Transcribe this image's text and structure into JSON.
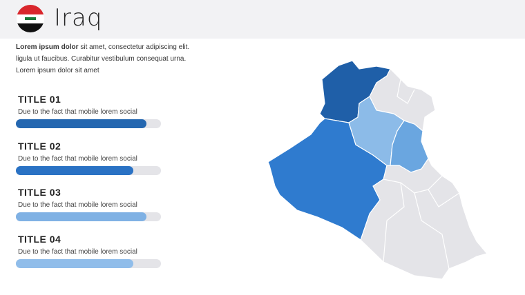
{
  "header": {
    "title": "Iraq"
  },
  "intro": {
    "bold": "Lorem ipsum dolor",
    "lines": [
      " sit amet, consectetur adipiscing elit.",
      "ligula ut faucibus. Curabitur vestibulum consequat urna.",
      "Lorem ipsum dolor sit amet"
    ]
  },
  "bar_range": [
    0,
    100
  ],
  "items": [
    {
      "title": "TITLE 01",
      "text": "Due to the fact that mobile lorem social",
      "value": 90,
      "color": "#2467b0"
    },
    {
      "title": "TITLE 02",
      "text": "Due to the fact that mobile lorem social",
      "value": 81,
      "color": "#2a72c4"
    },
    {
      "title": "TITLE 03",
      "text": "Due to the fact that mobile lorem social",
      "value": 90,
      "color": "#7fb1e4"
    },
    {
      "title": "TITLE 04",
      "text": "Due to the fact that mobile lorem social",
      "value": 81,
      "color": "#90bdea"
    }
  ]
}
